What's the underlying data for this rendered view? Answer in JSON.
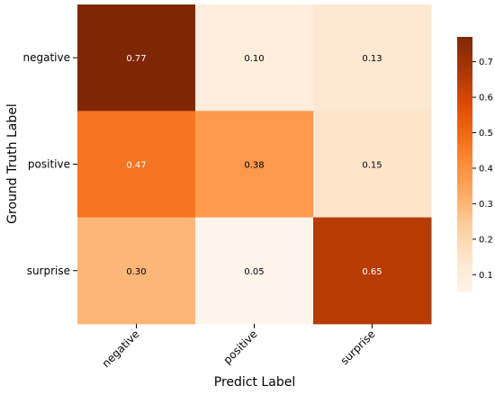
{
  "chart_data": {
    "type": "heatmap",
    "xlabel": "Predict Label",
    "ylabel": "Ground Truth Label",
    "x_categories": [
      "negative",
      "positive",
      "surprise"
    ],
    "y_categories": [
      "negative",
      "positive",
      "surprise"
    ],
    "values": [
      [
        0.77,
        0.1,
        0.13
      ],
      [
        0.47,
        0.38,
        0.15
      ],
      [
        0.3,
        0.05,
        0.65
      ]
    ],
    "value_labels": [
      [
        "0.77",
        "0.10",
        "0.13"
      ],
      [
        "0.47",
        "0.38",
        "0.15"
      ],
      [
        "0.30",
        "0.05",
        "0.65"
      ]
    ],
    "colormap": "Oranges",
    "color_range": [
      0.05,
      0.77
    ],
    "colorbar": {
      "placement": "right",
      "ticks": [
        0.1,
        0.2,
        0.3,
        0.4,
        0.5,
        0.6,
        0.7
      ],
      "tick_labels": [
        "0.1",
        "0.2",
        "0.3",
        "0.4",
        "0.5",
        "0.6",
        "0.7"
      ]
    },
    "grid": false
  }
}
